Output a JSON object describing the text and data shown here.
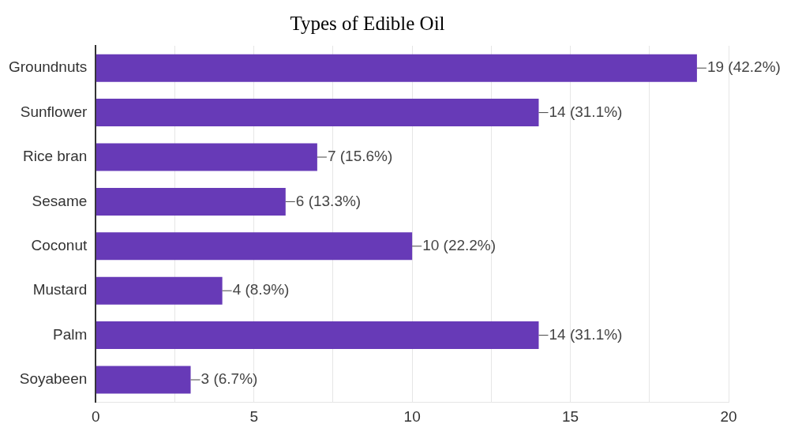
{
  "chart_data": {
    "type": "bar",
    "orientation": "horizontal",
    "title": "Types of Edible Oil",
    "categories": [
      "Groundnuts",
      "Sunflower",
      "Rice bran",
      "Sesame",
      "Coconut",
      "Mustard",
      "Palm",
      "Soyabeen"
    ],
    "values": [
      19,
      14,
      7,
      6,
      10,
      4,
      14,
      3
    ],
    "value_labels": [
      "19 (42.2%)",
      "14 (31.1%)",
      "7 (15.6%)",
      "6 (13.3%)",
      "10 (22.2%)",
      "4 (8.9%)",
      "14 (31.1%)",
      "3 (6.7%)"
    ],
    "color": "#673ab7",
    "xlim": [
      0,
      20
    ],
    "xticks": [
      0,
      {
        "value": 2.5,
        "label": null
      },
      5,
      {
        "value": 7.5,
        "label": null
      },
      10,
      {
        "value": 12.5,
        "label": null
      },
      15,
      {
        "value": 17.5,
        "label": null
      },
      20
    ],
    "grid": "x",
    "legend": false
  }
}
